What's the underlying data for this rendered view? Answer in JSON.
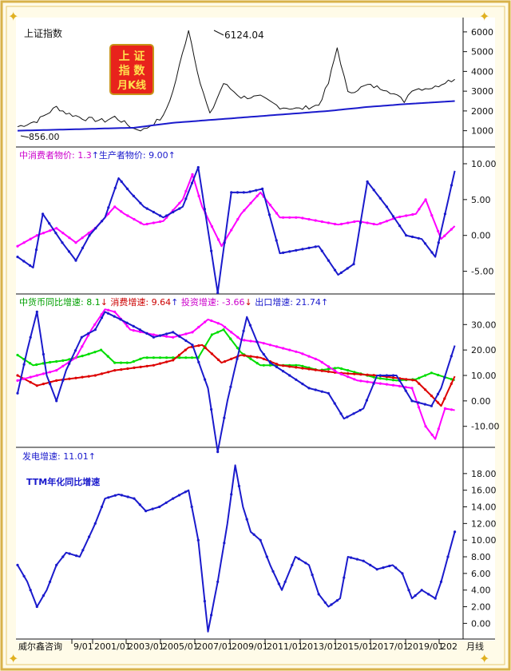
{
  "frame": {
    "border_color": "#d8b24a",
    "plot_bg": "#ffffff"
  },
  "badge": {
    "lines": [
      "上 证",
      "指 数",
      "月K线"
    ],
    "bg": "#e8231c",
    "fg": "#ffe14d"
  },
  "footer": {
    "brand": "威尔鑫咨询",
    "ticks": [
      "9/01",
      "2001/01",
      "2003/01",
      "2005/01",
      "2007/01",
      "2009/01",
      "2011/01",
      "2013/01",
      "2015/01",
      "2017/01",
      "2019/01",
      "202"
    ],
    "end_label": "月线"
  },
  "chart_data": [
    {
      "id": "index",
      "type": "line",
      "title": "上证指数",
      "ylim": [
        500,
        6400
      ],
      "ytick_labels": [
        "6000",
        "5000",
        "4000",
        "3000",
        "2000",
        "1000"
      ],
      "yticks": [
        6000,
        5000,
        4000,
        3000,
        2000,
        1000
      ],
      "annotations": [
        {
          "text": "6124.04",
          "value": 6124.04
        },
        {
          "text": "856.00",
          "value": 856.0
        }
      ],
      "series": [
        {
          "key": "price",
          "color": "#111111",
          "x": [
            1999.0,
            2000.0,
            2001.0,
            2001.5,
            2002.5,
            2003.5,
            2004.0,
            2005.0,
            2005.5,
            2006.5,
            2007.0,
            2007.8,
            2008.4,
            2008.9,
            2009.6,
            2010.5,
            2011.5,
            2012.5,
            2013.5,
            2014.5,
            2015.0,
            2015.45,
            2016.0,
            2017.0,
            2018.0,
            2018.9,
            2019.3,
            2020.5,
            2021.0,
            2021.5
          ],
          "values": [
            1200,
            1500,
            2200,
            1900,
            1600,
            1500,
            1700,
            1100,
            1050,
            1700,
            3000,
            6124.04,
            3400,
            1800,
            3400,
            2700,
            2700,
            2200,
            2100,
            2300,
            3400,
            5200,
            2900,
            3300,
            3100,
            2500,
            3100,
            3200,
            3500,
            3600
          ]
        },
        {
          "key": "long-ma",
          "color": "#1a1acc",
          "x": [
            1999.0,
            2001.0,
            2003.0,
            2005.0,
            2007.0,
            2009.0,
            2011.0,
            2013.0,
            2015.0,
            2017.0,
            2019.0,
            2021.5
          ],
          "values": [
            1000,
            1050,
            1100,
            1150,
            1400,
            1550,
            1700,
            1850,
            2000,
            2200,
            2350,
            2500
          ]
        }
      ]
    },
    {
      "id": "cpi",
      "type": "line",
      "legend": [
        {
          "text": "中消费者物价: 1.3",
          "color": "#cc00cc",
          "arrow": "↑",
          "arrow_color": "#1a1acc"
        },
        {
          "text": "生产者物价: 9.00",
          "color": "#1a1acc",
          "arrow": "↑",
          "arrow_color": "#1a1acc"
        }
      ],
      "ylim": [
        -7.5,
        11
      ],
      "ytick_labels": [
        "10.00",
        "5.00",
        "0.00",
        "-5.00"
      ],
      "yticks": [
        10,
        5,
        0,
        -5
      ],
      "series": [
        {
          "key": "cpi",
          "color": "#ff00ff",
          "x": [
            1999.0,
            2000.0,
            2001.0,
            2002.0,
            2003.0,
            2004.0,
            2004.5,
            2005.5,
            2006.5,
            2007.5,
            2008.0,
            2008.5,
            2009.5,
            2010.5,
            2011.5,
            2012.5,
            2013.5,
            2014.5,
            2015.5,
            2016.5,
            2017.5,
            2018.5,
            2019.5,
            2020.0,
            2020.8,
            2021.5
          ],
          "values": [
            -1.5,
            0.0,
            1.0,
            -1.0,
            1.0,
            4.0,
            3.0,
            1.5,
            2.0,
            5.0,
            8.5,
            4.0,
            -1.5,
            3.0,
            6.0,
            2.5,
            2.5,
            2.0,
            1.5,
            2.0,
            1.5,
            2.5,
            3.0,
            5.0,
            -0.5,
            1.3
          ]
        },
        {
          "key": "ppi",
          "color": "#1a1acc",
          "x": [
            1999.0,
            1999.8,
            2000.3,
            2001.3,
            2002.0,
            2002.7,
            2003.5,
            2004.2,
            2004.8,
            2005.5,
            2006.5,
            2007.5,
            2008.3,
            2009.3,
            2010.0,
            2010.8,
            2011.6,
            2012.5,
            2013.5,
            2014.5,
            2015.5,
            2016.3,
            2017.0,
            2018.0,
            2019.0,
            2019.8,
            2020.5,
            2021.5
          ],
          "values": [
            -3.0,
            -4.5,
            3.0,
            -1.0,
            -3.5,
            0.0,
            2.5,
            8.0,
            6.0,
            4.0,
            2.5,
            4.0,
            9.5,
            -8.0,
            6.0,
            6.0,
            6.5,
            -2.5,
            -2.0,
            -1.5,
            -5.5,
            -4.0,
            7.5,
            4.0,
            0.0,
            -0.5,
            -3.0,
            9.0
          ]
        }
      ]
    },
    {
      "id": "money",
      "type": "line",
      "legend": [
        {
          "text": "中货币同比增速: 8.1",
          "color": "#00a000",
          "arrow": "↓",
          "arrow_color": "#cc0000"
        },
        {
          "text": "消费增速: 9.64",
          "color": "#cc0000",
          "arrow": "↑",
          "arrow_color": "#1a1acc"
        },
        {
          "text": "投资增速: -3.66",
          "color": "#cc00cc",
          "arrow": "↓",
          "arrow_color": "#cc0000"
        },
        {
          "text": "出口增速: 21.74",
          "color": "#1a1acc",
          "arrow": "↑",
          "arrow_color": "#1a1acc"
        }
      ],
      "ylim": [
        -17,
        37
      ],
      "ytick_labels": [
        "30.00",
        "20.00",
        "10.00",
        "0.00",
        "-10.00"
      ],
      "yticks": [
        30,
        20,
        10,
        0,
        -10
      ],
      "series": [
        {
          "key": "m2",
          "color": "#00dd00",
          "x": [
            1999.0,
            1999.8,
            2000.5,
            2001.5,
            2002.5,
            2003.3,
            2004.0,
            2004.8,
            2005.5,
            2006.5,
            2007.5,
            2008.3,
            2009.0,
            2009.6,
            2010.5,
            2011.5,
            2012.5,
            2013.5,
            2014.5,
            2015.5,
            2016.5,
            2017.5,
            2018.5,
            2019.5,
            2020.3,
            2021.5
          ],
          "values": [
            18.0,
            14.0,
            15.0,
            16.0,
            18.0,
            20.0,
            15.0,
            15.0,
            17.0,
            17.0,
            17.0,
            17.0,
            26.0,
            28.0,
            19.0,
            14.0,
            14.0,
            14.0,
            12.0,
            13.0,
            11.0,
            9.0,
            8.0,
            8.5,
            11.0,
            8.1
          ]
        },
        {
          "key": "consumption",
          "color": "#dd0000",
          "x": [
            1999.0,
            2000.0,
            2001.0,
            2002.0,
            2003.0,
            2004.0,
            2005.0,
            2006.0,
            2007.0,
            2007.8,
            2008.5,
            2009.5,
            2010.5,
            2011.5,
            2012.5,
            2013.5,
            2014.5,
            2015.5,
            2016.5,
            2017.5,
            2018.5,
            2019.5,
            2020.3,
            2020.8,
            2021.5
          ],
          "values": [
            10.0,
            6.0,
            8.0,
            9.0,
            10.0,
            12.0,
            13.0,
            14.0,
            16.0,
            21.0,
            22.0,
            15.0,
            18.0,
            17.0,
            14.0,
            13.0,
            12.0,
            11.0,
            10.5,
            10.0,
            9.0,
            8.0,
            2.0,
            -2.0,
            9.64
          ]
        },
        {
          "key": "investment",
          "color": "#ff00ff",
          "x": [
            1999.0,
            2000.0,
            2001.0,
            2002.0,
            2002.8,
            2003.5,
            2004.0,
            2004.8,
            2006.0,
            2007.0,
            2008.0,
            2008.8,
            2009.5,
            2010.5,
            2011.5,
            2012.5,
            2013.5,
            2014.5,
            2015.5,
            2016.5,
            2017.5,
            2018.5,
            2019.3,
            2020.0,
            2020.5,
            2021.0,
            2021.5
          ],
          "values": [
            8.0,
            10.0,
            12.0,
            17.0,
            28.0,
            36.0,
            35.0,
            28.0,
            26.0,
            25.0,
            27.0,
            32.0,
            30.0,
            24.0,
            23.0,
            21.0,
            19.0,
            16.0,
            11.0,
            8.0,
            7.0,
            6.0,
            5.0,
            -10.0,
            -15.0,
            -3.0,
            -3.66
          ]
        },
        {
          "key": "export",
          "color": "#1a1acc",
          "x": [
            1999.0,
            1999.5,
            2000.0,
            2000.5,
            2001.0,
            2001.5,
            2002.3,
            2003.0,
            2003.5,
            2004.3,
            2005.3,
            2006.0,
            2007.0,
            2008.0,
            2008.8,
            2009.3,
            2009.8,
            2010.8,
            2011.5,
            2012.0,
            2013.0,
            2014.0,
            2015.0,
            2015.8,
            2016.8,
            2017.5,
            2018.5,
            2019.3,
            2020.3,
            2020.8,
            2021.5
          ],
          "values": [
            3.0,
            20.0,
            35.0,
            10.0,
            0.0,
            12.0,
            25.0,
            28.0,
            35.0,
            32.0,
            28.0,
            25.0,
            27.0,
            22.0,
            5.0,
            -20.0,
            0.0,
            33.0,
            20.0,
            15.0,
            10.0,
            5.0,
            3.0,
            -7.0,
            -3.0,
            10.0,
            10.0,
            0.0,
            -2.0,
            5.0,
            21.74
          ]
        }
      ]
    },
    {
      "id": "power",
      "type": "line",
      "legend": [
        {
          "text": "发电增速: 11.01",
          "color": "#1a1acc",
          "arrow": "↑",
          "arrow_color": "#1a1acc"
        }
      ],
      "note": "TTM年化同比增速",
      "ylim": [
        -1.5,
        20
      ],
      "ytick_labels": [
        "18.00",
        "16.00",
        "14.00",
        "12.00",
        "10.00",
        "8.00",
        "6.00",
        "4.00",
        "2.00",
        "0.00"
      ],
      "yticks": [
        18,
        16,
        14,
        12,
        10,
        8,
        6,
        4,
        2,
        0
      ],
      "series": [
        {
          "key": "power",
          "color": "#1a1acc",
          "x": [
            1999.0,
            1999.5,
            2000.0,
            2000.5,
            2001.0,
            2001.5,
            2002.2,
            2003.0,
            2003.5,
            2004.2,
            2005.0,
            2005.6,
            2006.3,
            2007.0,
            2007.8,
            2008.3,
            2008.8,
            2009.3,
            2009.8,
            2010.2,
            2010.6,
            2011.0,
            2011.5,
            2012.0,
            2012.6,
            2013.3,
            2014.0,
            2014.5,
            2015.0,
            2015.6,
            2016.0,
            2016.8,
            2017.5,
            2018.3,
            2018.8,
            2019.3,
            2019.8,
            2020.5,
            2020.8,
            2021.5
          ],
          "values": [
            7.0,
            5.0,
            2.0,
            4.0,
            7.0,
            8.5,
            8.0,
            12.0,
            15.0,
            15.5,
            15.0,
            13.5,
            14.0,
            15.0,
            16.0,
            10.0,
            -1.0,
            5.0,
            12.0,
            19.0,
            14.0,
            11.0,
            10.0,
            7.0,
            4.0,
            8.0,
            7.0,
            3.5,
            2.0,
            3.0,
            8.0,
            7.5,
            6.5,
            7.0,
            6.0,
            3.0,
            4.0,
            3.0,
            5.0,
            11.01
          ]
        }
      ]
    }
  ]
}
